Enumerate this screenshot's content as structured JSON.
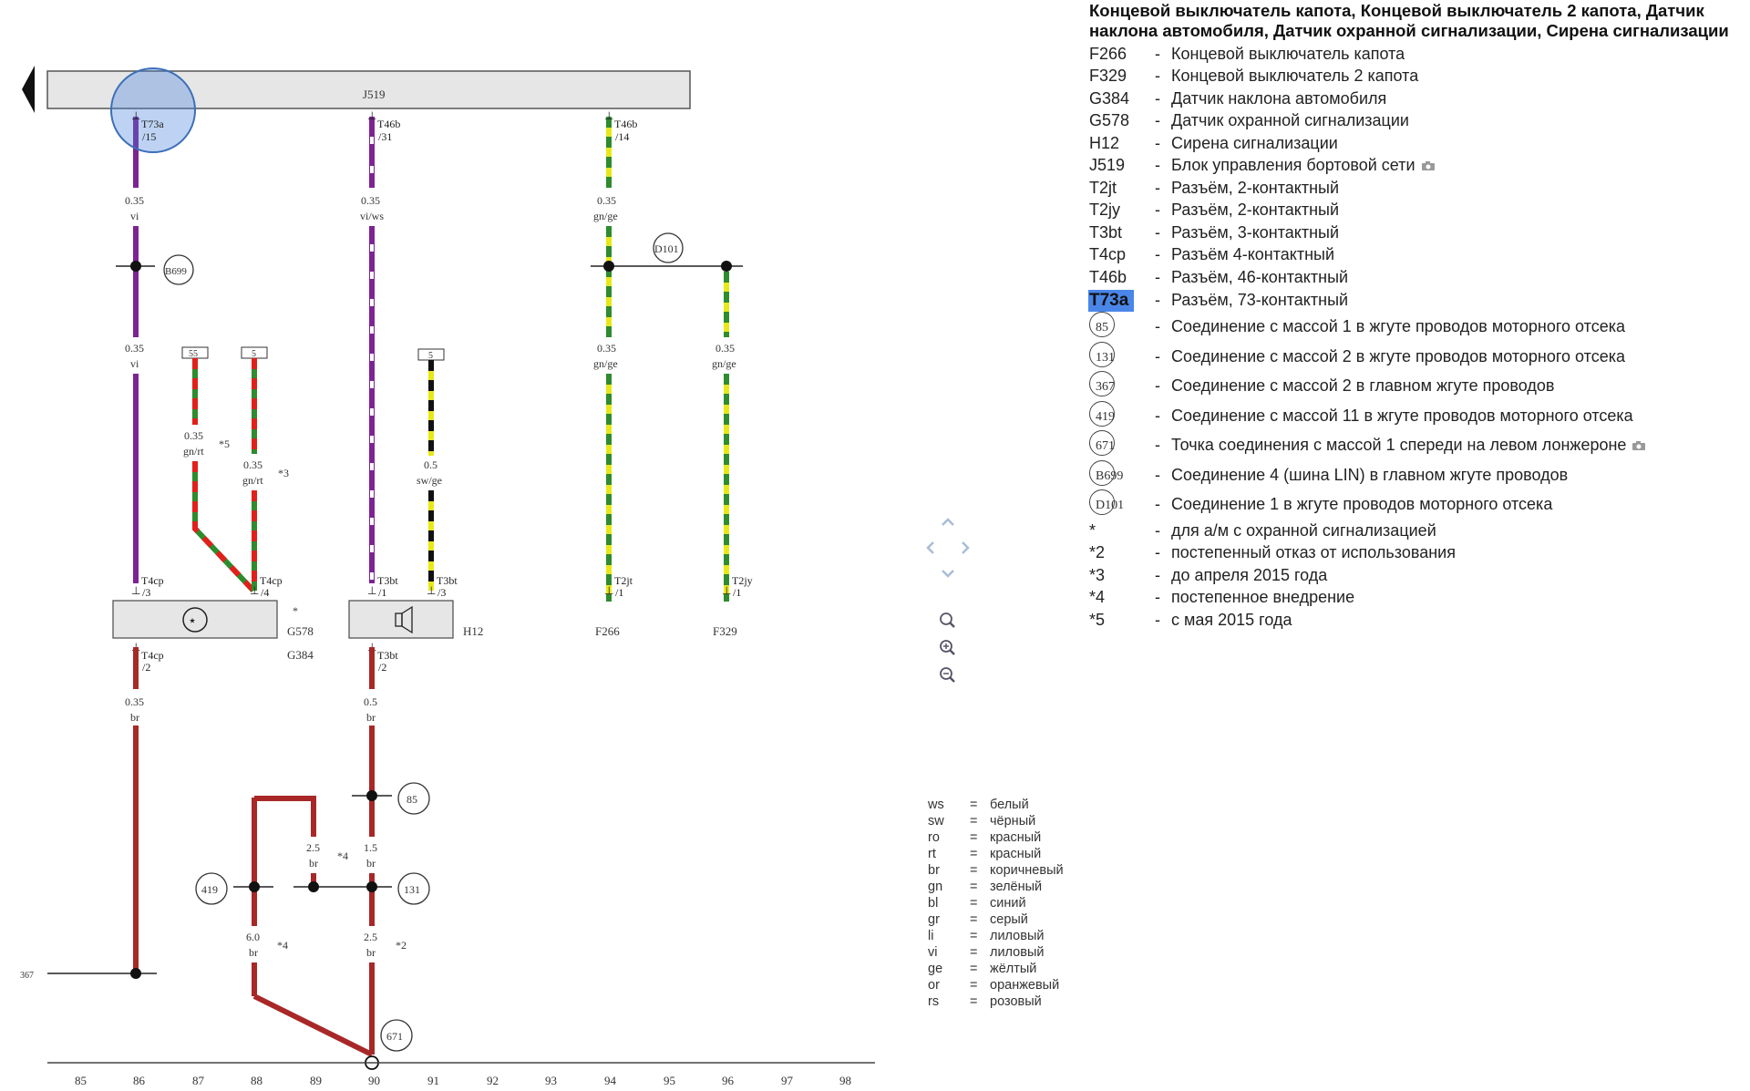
{
  "diagram": {
    "module_label": "J519",
    "connectors": {
      "t73a": "T73a",
      "t73a_pin": "/15",
      "t46b": "T46b",
      "t46b_pin31": "/31",
      "t46b_pin14": "/14",
      "t4cp": "T4cp",
      "t4cp_pin3": "/3",
      "t4cp_pin4": "/4",
      "t4cp_pin2": "/2",
      "t3bt": "T3bt",
      "t3bt_pin1": "/1",
      "t3bt_pin3": "/3",
      "t3bt_pin2": "/2",
      "t2jt": "T2jt",
      "t2jt_pin": "/1",
      "t2jy": "T2jy",
      "t2jy_pin": "/1"
    },
    "wires": {
      "w1_size": "0.35",
      "w1_color": "vi",
      "w2_size": "0.35",
      "w2_color": "vi",
      "w3_size": "0.35",
      "w3_color": "vi/ws",
      "w4_size": "0.35",
      "w4_color": "gn/ge",
      "w5_size": "0.35",
      "w5_color": "gn/ge",
      "w6_size": "0.35",
      "w6_color": "gn/ge",
      "w7_size": "0.35",
      "w7_color": "gn/rt",
      "w8_size": "0.35",
      "w8_color": "gn/rt",
      "w9_size": "0.5",
      "w9_color": "sw/ge",
      "w10_size": "0.35",
      "w10_color": "br",
      "w11_size": "0.5",
      "w11_color": "br",
      "w12_size": "1.5",
      "w12_color": "br",
      "w13_size": "2.5",
      "w13_color": "br",
      "w14_size": "2.5",
      "w14_color": "br",
      "w15_size": "6.0",
      "w15_color": "br"
    },
    "notes": {
      "n5": "*5",
      "n3": "*3",
      "n4a": "*4",
      "n4b": "*4",
      "n2": "*2",
      "star": "*"
    },
    "terminals": {
      "a": "55",
      "b": "5",
      "c": "5"
    },
    "components": {
      "g578": "G578",
      "g384": "G384",
      "h12": "H12",
      "f266": "F266",
      "f329": "F329"
    },
    "nodes": {
      "b699": "B699",
      "d101": "D101",
      "n85": "85",
      "n131": "131",
      "n419": "419",
      "n671": "671",
      "n367": "367"
    },
    "grid": [
      "85",
      "86",
      "87",
      "88",
      "89",
      "90",
      "91",
      "92",
      "93",
      "94",
      "95",
      "96",
      "97",
      "98"
    ],
    "wire_colors": {
      "violet": "#7d2393",
      "green": "#2e8b2e",
      "yellow": "#e8e818",
      "red": "#e0201a",
      "black": "#111111",
      "brown": "#a82828",
      "white": "#ffffff"
    }
  },
  "legend": {
    "title": "Концевой выключатель капота, Концевой выключатель 2 капота, Датчик наклона автомобиля, Датчик охранной сигнализации, Сирена сигнализации",
    "items": [
      {
        "code": "F266",
        "dash": "-",
        "desc": "Концевой выключатель капота"
      },
      {
        "code": "F329",
        "dash": "-",
        "desc": "Концевой выключатель 2 капота"
      },
      {
        "code": "G384",
        "dash": "-",
        "desc": "Датчик наклона автомобиля"
      },
      {
        "code": "G578",
        "dash": "-",
        "desc": "Датчик охранной сигнализации"
      },
      {
        "code": "H12",
        "dash": "-",
        "desc": "Сирена сигнализации"
      },
      {
        "code": "J519",
        "dash": "-",
        "desc": "Блок управления бортовой сети",
        "icon": "camera-icon"
      },
      {
        "code": "T2jt",
        "dash": "-",
        "desc": "Разъём, 2-контактный"
      },
      {
        "code": "T2jy",
        "dash": "-",
        "desc": "Разъём, 2-контактный"
      },
      {
        "code": "T3bt",
        "dash": "-",
        "desc": "Разъём, 3-контактный"
      },
      {
        "code": "T4cp",
        "dash": "-",
        "desc": "Разъём 4-контактный"
      },
      {
        "code": "T46b",
        "dash": "-",
        "desc": "Разъём, 46-контактный"
      },
      {
        "code": "T73a",
        "dash": "-",
        "desc": "Разъём, 73-контактный",
        "highlighted": true
      }
    ],
    "ground_items": [
      {
        "code": "85",
        "dash": "-",
        "desc": "Соединение с массой 1 в жгуте проводов моторного отсека"
      },
      {
        "code": "131",
        "dash": "-",
        "desc": "Соединение с массой 2 в жгуте проводов моторного отсека"
      },
      {
        "code": "367",
        "dash": "-",
        "desc": "Соединение с массой 2 в главном жгуте проводов"
      },
      {
        "code": "419",
        "dash": "-",
        "desc": "Соединение с массой 11 в жгуте проводов моторного отсека"
      },
      {
        "code": "671",
        "dash": "-",
        "desc": "Точка соединения с массой 1 спереди на левом лонжероне",
        "icon": "camera-icon"
      },
      {
        "code": "B699",
        "dash": "-",
        "desc": "Соединение 4 (шина LIN) в главном жгуте проводов"
      },
      {
        "code": "D101",
        "dash": "-",
        "desc": "Соединение 1 в жгуте проводов моторного отсека"
      }
    ],
    "notes": [
      {
        "code": "*",
        "dash": "-",
        "desc": "для а/м с охранной сигнализацией"
      },
      {
        "code": "*2",
        "dash": "-",
        "desc": "постепенный отказ от использования"
      },
      {
        "code": "*3",
        "dash": "-",
        "desc": "до апреля 2015 года"
      },
      {
        "code": "*4",
        "dash": "-",
        "desc": "постепенное внедрение"
      },
      {
        "code": "*5",
        "dash": "-",
        "desc": "с мая 2015 года"
      }
    ]
  },
  "colors": [
    {
      "code": "ws",
      "eq": "=",
      "name": "белый"
    },
    {
      "code": "sw",
      "eq": "=",
      "name": "чёрный"
    },
    {
      "code": "ro",
      "eq": "=",
      "name": "красный"
    },
    {
      "code": "rt",
      "eq": "=",
      "name": "красный"
    },
    {
      "code": "br",
      "eq": "=",
      "name": "коричневый"
    },
    {
      "code": "gn",
      "eq": "=",
      "name": "зелёный"
    },
    {
      "code": "bl",
      "eq": "=",
      "name": "синий"
    },
    {
      "code": "gr",
      "eq": "=",
      "name": "серый"
    },
    {
      "code": "li",
      "eq": "=",
      "name": "лиловый"
    },
    {
      "code": "vi",
      "eq": "=",
      "name": "лиловый"
    },
    {
      "code": "ge",
      "eq": "=",
      "name": "жёлтый"
    },
    {
      "code": "or",
      "eq": "=",
      "name": "оранжевый"
    },
    {
      "code": "rs",
      "eq": "=",
      "name": "розовый"
    }
  ]
}
